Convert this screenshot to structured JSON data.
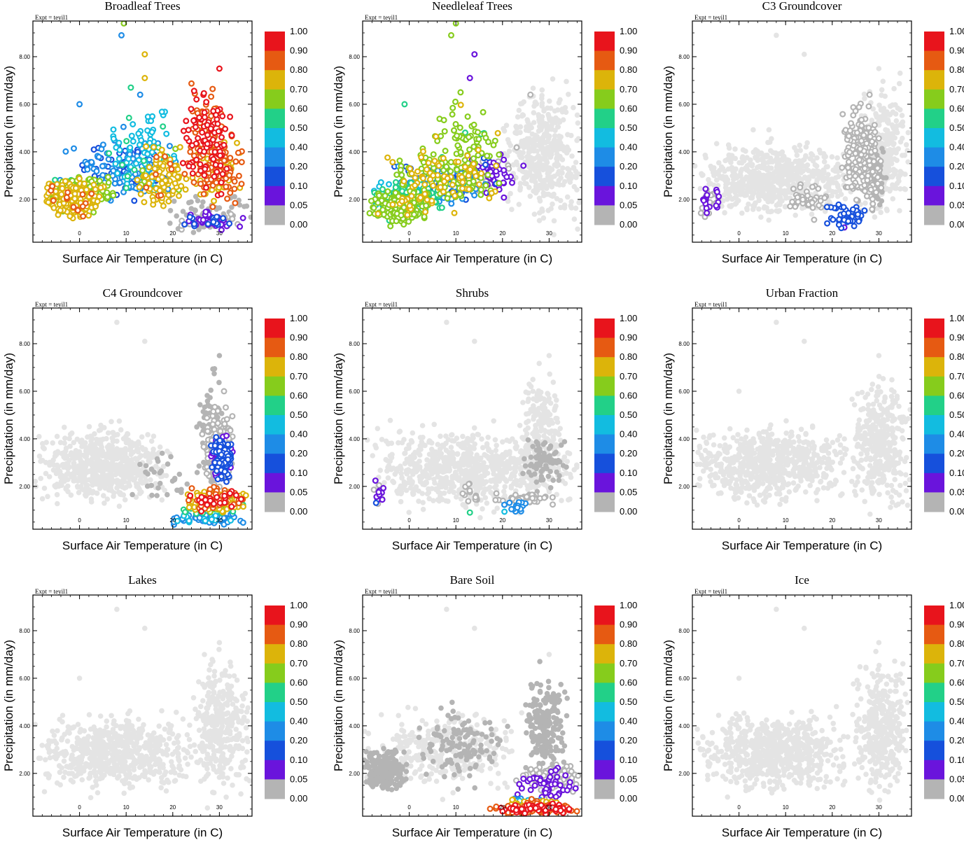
{
  "figure": {
    "experiment": "Expt = teyil1",
    "xlabel": "Surface Air Temperature (in C)",
    "ylabel": "Precipitation (in mm/day)"
  },
  "colorbar": {
    "labels": [
      "1.00",
      "0.90",
      "0.80",
      "0.70",
      "0.60",
      "0.50",
      "0.40",
      "0.20",
      "0.10",
      "0.05",
      "0.00"
    ],
    "colors": [
      "#e8141c",
      "#e65a12",
      "#dcb40a",
      "#86cc1c",
      "#22d088",
      "#12bce0",
      "#1e8ce6",
      "#1650dc",
      "#6a14dc",
      "#b4b4b4"
    ],
    "no_data_color": "#e4e4e4"
  },
  "axes": {
    "xlim": [
      -10,
      37
    ],
    "ylim": [
      0.2,
      9.5
    ],
    "xticks": [
      0,
      10,
      20,
      30
    ],
    "yticks": [
      2,
      4,
      6,
      8
    ],
    "xtick_labels": [
      "0",
      "10",
      "20",
      "30"
    ],
    "ytick_labels": [
      "2.00",
      "4.00",
      "6.00",
      "8.00"
    ]
  },
  "chart_data": [
    {
      "type": "scatter",
      "title": "Broadleaf Trees",
      "xlabel": "Surface Air Temperature (in C)",
      "ylabel": "Precipitation (in mm/day)",
      "xlim": [
        -10,
        37
      ],
      "ylim": [
        0.2,
        9.5
      ],
      "color_variable": "Broadleaf Trees fraction",
      "clusters": [
        {
          "x_range": [
            -8,
            5
          ],
          "y_range": [
            1.0,
            3.0
          ],
          "count": 220,
          "fraction_level": 0.8
        },
        {
          "x_range": [
            -6,
            8
          ],
          "y_range": [
            1.6,
            3.2
          ],
          "count": 120,
          "fraction_level": 0.7
        },
        {
          "x_range": [
            -5,
            22
          ],
          "y_range": [
            1.2,
            5.0
          ],
          "count": 160,
          "fraction_level": 0.3
        },
        {
          "x_range": [
            5,
            22
          ],
          "y_range": [
            1.5,
            6.5
          ],
          "count": 90,
          "fraction_level": 0.5
        },
        {
          "x_range": [
            12,
            24
          ],
          "y_range": [
            1.3,
            4.5
          ],
          "count": 100,
          "fraction_level": 0.8
        },
        {
          "x_range": [
            22,
            33
          ],
          "y_range": [
            1.5,
            7.5
          ],
          "count": 170,
          "fraction_level": 0.95
        },
        {
          "x_range": [
            24,
            36
          ],
          "y_range": [
            1.5,
            5.0
          ],
          "count": 130,
          "fraction_level": 0.85
        },
        {
          "x_range": [
            20,
            36
          ],
          "y_range": [
            0.6,
            1.6
          ],
          "count": 80,
          "fraction_level": 0.1
        },
        {
          "x_range": [
            18,
            37
          ],
          "y_range": [
            0.4,
            2.5
          ],
          "count": 70,
          "fraction_level": 0.0
        }
      ],
      "points": [
        [
          9.5,
          9.4,
          0.7
        ],
        [
          9,
          8.9,
          0.3
        ],
        [
          14,
          8.1,
          0.8
        ],
        [
          0,
          6.0,
          0.3
        ],
        [
          14,
          7.1,
          0.8
        ],
        [
          30,
          7.5,
          0.95
        ],
        [
          11,
          6.7,
          0.6
        ],
        [
          13,
          6.4,
          0.3
        ]
      ]
    },
    {
      "type": "scatter",
      "title": "Needleleaf Trees",
      "xlabel": "Surface Air Temperature (in C)",
      "ylabel": "Precipitation (in mm/day)",
      "xlim": [
        -10,
        37
      ],
      "ylim": [
        0.2,
        9.5
      ],
      "color_variable": "Needleleaf Trees fraction",
      "clusters": [
        {
          "x_range": [
            -9,
            5
          ],
          "y_range": [
            0.8,
            2.5
          ],
          "count": 200,
          "fraction_level": 0.7
        },
        {
          "x_range": [
            -8,
            8
          ],
          "y_range": [
            1.3,
            3.0
          ],
          "count": 100,
          "fraction_level": 0.6
        },
        {
          "x_range": [
            -5,
            20
          ],
          "y_range": [
            1.2,
            4.5
          ],
          "count": 150,
          "fraction_level": 0.75
        },
        {
          "x_range": [
            -5,
            20
          ],
          "y_range": [
            1.5,
            4.0
          ],
          "count": 120,
          "fraction_level": 0.3
        },
        {
          "x_range": [
            5,
            20
          ],
          "y_range": [
            2.0,
            6.5
          ],
          "count": 80,
          "fraction_level": 0.7
        },
        {
          "x_range": [
            12,
            25
          ],
          "y_range": [
            1.5,
            4.5
          ],
          "count": 60,
          "fraction_level": 0.1
        },
        {
          "x_range": [
            -8,
            5
          ],
          "y_range": [
            1.0,
            3.0
          ],
          "count": 70,
          "fraction_level": 0.5
        },
        {
          "x_range": [
            20,
            37
          ],
          "y_range": [
            0.3,
            7.5
          ],
          "count": 420,
          "fraction_level": -1
        }
      ],
      "points": [
        [
          10,
          9.4,
          0.7
        ],
        [
          9,
          8.9,
          0.7
        ],
        [
          14,
          8.1,
          0.1
        ],
        [
          -1,
          6.0,
          0.6
        ],
        [
          13,
          7.1,
          0.1
        ],
        [
          26,
          6.4,
          0.05
        ],
        [
          11,
          6.5,
          0.7
        ]
      ]
    },
    {
      "type": "scatter",
      "title": "C3 Groundcover",
      "xlabel": "Surface Air Temperature (in C)",
      "ylabel": "Precipitation (in mm/day)",
      "xlim": [
        -10,
        37
      ],
      "ylim": [
        0.2,
        9.5
      ],
      "color_variable": "C3 Groundcover fraction",
      "clusters": [
        {
          "x_range": [
            -10,
            25
          ],
          "y_range": [
            0.8,
            5.0
          ],
          "count": 600,
          "fraction_level": -1
        },
        {
          "x_range": [
            25,
            37
          ],
          "y_range": [
            0.5,
            7.5
          ],
          "count": 300,
          "fraction_level": -1
        },
        {
          "x_range": [
            -9,
            -4
          ],
          "y_range": [
            1.0,
            2.8
          ],
          "count": 40,
          "fraction_level": 0.08
        },
        {
          "x_range": [
            22,
            31
          ],
          "y_range": [
            1.0,
            6.5
          ],
          "count": 220,
          "fraction_level": 0.05
        },
        {
          "x_range": [
            10,
            20
          ],
          "y_range": [
            1.0,
            3.0
          ],
          "count": 40,
          "fraction_level": 0.05
        },
        {
          "x_range": [
            18,
            28
          ],
          "y_range": [
            0.6,
            2.0
          ],
          "count": 50,
          "fraction_level": 0.2
        },
        {
          "x_range": [
            27,
            32
          ],
          "y_range": [
            1.0,
            5.0
          ],
          "count": 60,
          "fraction_level": 0.0
        }
      ],
      "points": [
        [
          8,
          8.9,
          -1
        ],
        [
          14,
          8.1,
          -1
        ],
        [
          28,
          6.4,
          0.05
        ],
        [
          30,
          7.5,
          -1
        ]
      ]
    },
    {
      "type": "scatter",
      "title": "C4 Groundcover",
      "xlabel": "Surface Air Temperature (in C)",
      "ylabel": "Precipitation (in mm/day)",
      "xlim": [
        -10,
        37
      ],
      "ylim": [
        0.2,
        9.5
      ],
      "color_variable": "C4 Groundcover fraction",
      "clusters": [
        {
          "x_range": [
            -10,
            20
          ],
          "y_range": [
            0.8,
            5.0
          ],
          "count": 600,
          "fraction_level": -1
        },
        {
          "x_range": [
            10,
            25
          ],
          "y_range": [
            0.8,
            4.0
          ],
          "count": 30,
          "fraction_level": 0.0
        },
        {
          "x_range": [
            25,
            31
          ],
          "y_range": [
            1.0,
            7.5
          ],
          "count": 80,
          "fraction_level": 0.0
        },
        {
          "x_range": [
            26,
            33
          ],
          "y_range": [
            1.5,
            6.0
          ],
          "count": 150,
          "fraction_level": 0.05
        },
        {
          "x_range": [
            28,
            33
          ],
          "y_range": [
            2.0,
            4.5
          ],
          "count": 200,
          "fraction_level": 0.15
        },
        {
          "x_range": [
            22,
            36
          ],
          "y_range": [
            0.8,
            2.0
          ],
          "count": 120,
          "fraction_level": 0.8
        },
        {
          "x_range": [
            22,
            37
          ],
          "y_range": [
            0.8,
            2.2
          ],
          "count": 60,
          "fraction_level": 0.95
        },
        {
          "x_range": [
            18,
            37
          ],
          "y_range": [
            0.3,
            1.0
          ],
          "count": 80,
          "fraction_level": 0.4
        },
        {
          "x_range": [
            20,
            36
          ],
          "y_range": [
            0.8,
            1.5
          ],
          "count": 60,
          "fraction_level": 0.6
        }
      ],
      "points": [
        [
          8,
          8.9,
          -1
        ],
        [
          14,
          8.1,
          -1
        ],
        [
          30,
          7.5,
          0.0
        ],
        [
          31,
          6.0,
          0.05
        ]
      ]
    },
    {
      "type": "scatter",
      "title": "Shrubs",
      "xlabel": "Surface Air Temperature (in C)",
      "ylabel": "Precipitation (in mm/day)",
      "xlim": [
        -10,
        37
      ],
      "ylim": [
        0.2,
        9.5
      ],
      "color_variable": "Shrubs fraction",
      "clusters": [
        {
          "x_range": [
            -10,
            37
          ],
          "y_range": [
            0.5,
            5.0
          ],
          "count": 800,
          "fraction_level": -1
        },
        {
          "x_range": [
            24,
            33
          ],
          "y_range": [
            2.0,
            7.5
          ],
          "count": 150,
          "fraction_level": -1
        },
        {
          "x_range": [
            24,
            34
          ],
          "y_range": [
            1.5,
            4.5
          ],
          "count": 80,
          "fraction_level": 0.0
        },
        {
          "x_range": [
            -8,
            -5
          ],
          "y_range": [
            0.9,
            2.8
          ],
          "count": 15,
          "fraction_level": 0.1
        },
        {
          "x_range": [
            10,
            16
          ],
          "y_range": [
            1.0,
            2.5
          ],
          "count": 15,
          "fraction_level": 0.05
        },
        {
          "x_range": [
            18,
            33
          ],
          "y_range": [
            1.2,
            1.8
          ],
          "count": 45,
          "fraction_level": 0.05
        },
        {
          "x_range": [
            20,
            26
          ],
          "y_range": [
            0.8,
            1.4
          ],
          "count": 15,
          "fraction_level": 0.4
        }
      ],
      "points": [
        [
          8,
          8.9,
          -1
        ],
        [
          14,
          8.1,
          -1
        ],
        [
          30,
          7.5,
          -1
        ],
        [
          13,
          0.9,
          0.6
        ]
      ]
    },
    {
      "type": "scatter",
      "title": "Urban Fraction",
      "xlabel": "Surface Air Temperature (in C)",
      "ylabel": "Precipitation (in mm/day)",
      "xlim": [
        -10,
        37
      ],
      "ylim": [
        0.2,
        9.5
      ],
      "color_variable": "Urban fraction",
      "clusters": [
        {
          "x_range": [
            -10,
            25
          ],
          "y_range": [
            0.8,
            5.0
          ],
          "count": 650,
          "fraction_level": -1
        },
        {
          "x_range": [
            24,
            37
          ],
          "y_range": [
            0.3,
            7.5
          ],
          "count": 350,
          "fraction_level": -1
        }
      ],
      "points": [
        [
          8,
          8.9,
          -1
        ],
        [
          14,
          8.1,
          -1
        ],
        [
          30,
          7.5,
          -1
        ],
        [
          0,
          6.0,
          -1
        ]
      ]
    },
    {
      "type": "scatter",
      "title": "Lakes",
      "xlabel": "Surface Air Temperature (in C)",
      "ylabel": "Precipitation (in mm/day)",
      "xlim": [
        -10,
        37
      ],
      "ylim": [
        0.2,
        9.5
      ],
      "color_variable": "Lakes fraction",
      "clusters": [
        {
          "x_range": [
            -10,
            25
          ],
          "y_range": [
            0.8,
            5.0
          ],
          "count": 650,
          "fraction_level": -1
        },
        {
          "x_range": [
            24,
            37
          ],
          "y_range": [
            0.3,
            7.5
          ],
          "count": 350,
          "fraction_level": -1
        }
      ],
      "points": [
        [
          8,
          8.9,
          -1
        ],
        [
          14,
          8.1,
          -1
        ],
        [
          30,
          7.5,
          -1
        ],
        [
          0,
          6.0,
          -1
        ]
      ]
    },
    {
      "type": "scatter",
      "title": "Bare Soil",
      "xlabel": "Surface Air Temperature (in C)",
      "ylabel": "Precipitation (in mm/day)",
      "xlim": [
        -10,
        37
      ],
      "ylim": [
        0.2,
        9.5
      ],
      "color_variable": "Bare Soil fraction",
      "clusters": [
        {
          "x_range": [
            -10,
            25
          ],
          "y_range": [
            0.8,
            5.0
          ],
          "count": 300,
          "fraction_level": -1
        },
        {
          "x_range": [
            -10,
            0
          ],
          "y_range": [
            1.0,
            3.2
          ],
          "count": 220,
          "fraction_level": 0.0
        },
        {
          "x_range": [
            0,
            22
          ],
          "y_range": [
            1.0,
            5.5
          ],
          "count": 120,
          "fraction_level": 0.0
        },
        {
          "x_range": [
            24,
            34
          ],
          "y_range": [
            1.5,
            6.8
          ],
          "count": 200,
          "fraction_level": 0.0
        },
        {
          "x_range": [
            22,
            37
          ],
          "y_range": [
            0.8,
            2.5
          ],
          "count": 100,
          "fraction_level": 0.08
        },
        {
          "x_range": [
            26,
            37
          ],
          "y_range": [
            1.5,
            2.5
          ],
          "count": 40,
          "fraction_level": 0.05
        },
        {
          "x_range": [
            17,
            37
          ],
          "y_range": [
            0.2,
            0.8
          ],
          "count": 160,
          "fraction_level": 0.95
        },
        {
          "x_range": [
            20,
            33
          ],
          "y_range": [
            0.4,
            1.0
          ],
          "count": 50,
          "fraction_level": 0.8
        },
        {
          "x_range": [
            22,
            30
          ],
          "y_range": [
            0.5,
            1.0
          ],
          "count": 25,
          "fraction_level": 0.4
        }
      ],
      "points": [
        [
          8,
          8.9,
          -1
        ],
        [
          14,
          8.1,
          -1
        ],
        [
          28,
          6.7,
          0.0
        ],
        [
          30,
          7.0,
          -1
        ]
      ]
    },
    {
      "type": "scatter",
      "title": "Ice",
      "xlabel": "Surface Air Temperature (in C)",
      "ylabel": "Precipitation (in mm/day)",
      "xlim": [
        -10,
        37
      ],
      "ylim": [
        0.2,
        9.5
      ],
      "color_variable": "Ice fraction",
      "clusters": [
        {
          "x_range": [
            -10,
            25
          ],
          "y_range": [
            0.8,
            5.0
          ],
          "count": 650,
          "fraction_level": -1
        },
        {
          "x_range": [
            24,
            37
          ],
          "y_range": [
            0.3,
            7.5
          ],
          "count": 350,
          "fraction_level": -1
        }
      ],
      "points": [
        [
          8,
          8.9,
          -1
        ],
        [
          14,
          8.1,
          -1
        ],
        [
          30,
          7.5,
          -1
        ],
        [
          0,
          6.0,
          -1
        ]
      ]
    }
  ]
}
